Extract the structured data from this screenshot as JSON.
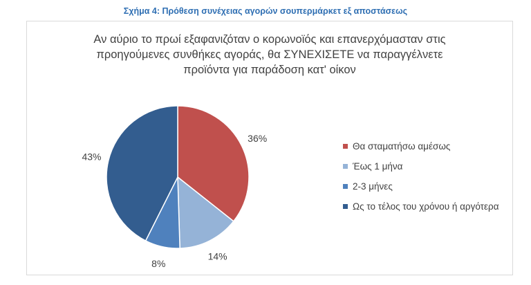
{
  "caption": "Σχήμα 4: Πρόθεση συνέχειας αγορών σουπερμάρκετ εξ αποστάσεως",
  "chart_data": {
    "type": "pie",
    "title": [
      "Αν αύριο το πρωί εξαφανιζόταν ο κορωνοϊός και επανερχόμασταν στις",
      "προηγούμενες συνθήκες αγοράς, θα ΣΥΝΕΧΙΣΕΤΕ να παραγγέλνετε",
      "προϊόντα για παράδοση κατ' οίκον"
    ],
    "categories": [
      "Θα σταματήσω αμέσως",
      "Έως 1 μήνα",
      "2-3 μήνες",
      "Ως το τέλος του χρόνου ή αργότερα"
    ],
    "values": [
      36,
      14,
      8,
      43
    ],
    "labels": [
      "36%",
      "14%",
      "8%",
      "43%"
    ],
    "colors": [
      "#c0504d",
      "#95b3d7",
      "#4f81bd",
      "#335d8f"
    ],
    "legend_position": "right"
  }
}
